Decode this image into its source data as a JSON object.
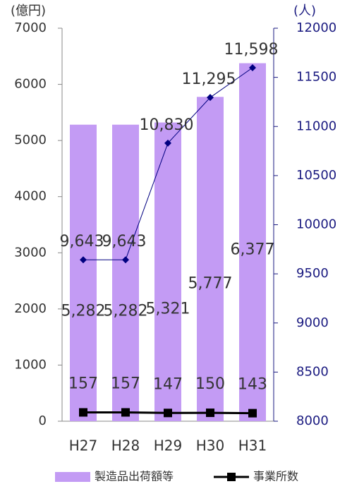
{
  "chart_data": {
    "type": "bar",
    "ylabel": "(億円)",
    "y2label": "(人)",
    "categories": [
      "H27",
      "H28",
      "H29",
      "H30",
      "H31"
    ],
    "ylim": [
      0,
      7000
    ],
    "yticks": [
      0,
      1000,
      2000,
      3000,
      4000,
      5000,
      6000,
      7000
    ],
    "y2lim": [
      8000,
      12000
    ],
    "y2ticks": [
      8000,
      8500,
      9000,
      9500,
      10000,
      10500,
      11000,
      11500,
      12000
    ],
    "series": [
      {
        "name": "製造品出荷額等",
        "type": "bar",
        "color": "#c39bf4",
        "values": [
          5282,
          5282,
          5321,
          5777,
          6377
        ],
        "value_labels": [
          "5,282",
          "5,282",
          "5,321",
          "5,777",
          "6,377"
        ]
      },
      {
        "name": "事業所数",
        "type": "line",
        "color": "#000000",
        "marker": "square",
        "values": [
          157,
          157,
          147,
          150,
          143
        ]
      },
      {
        "type": "line",
        "axis": "y2",
        "color": "#000080",
        "marker": "diamond",
        "values": [
          9643,
          9643,
          10830,
          11295,
          11598
        ],
        "value_labels": [
          "9,643",
          "9,643",
          "10,830",
          "11,295",
          "11,598"
        ]
      }
    ]
  }
}
